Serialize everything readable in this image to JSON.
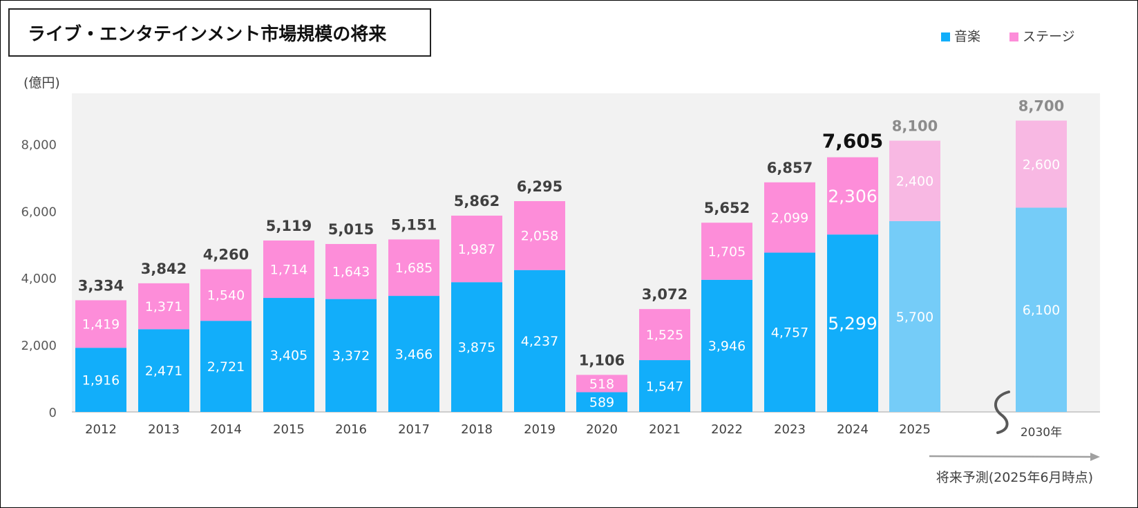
{
  "chart_data": {
    "type": "bar",
    "stacked": true,
    "title": "ライブ・エンタテインメント市場規模の将来",
    "ylabel": "(億円)",
    "ylim": [
      0,
      9000
    ],
    "yticks": [
      0,
      2000,
      4000,
      6000,
      8000
    ],
    "ytick_labels": [
      "0",
      "2,000",
      "4,000",
      "6,000",
      "8,000"
    ],
    "categories": [
      "2012",
      "2013",
      "2014",
      "2015",
      "2016",
      "2017",
      "2018",
      "2019",
      "2020",
      "2021",
      "2022",
      "2023",
      "2024",
      "2025",
      "2030年"
    ],
    "series": [
      {
        "name": "音楽",
        "color": "#12AEFA",
        "forecast_color": "#75CCF8",
        "values": [
          1916,
          2471,
          2721,
          3405,
          3372,
          3466,
          3875,
          4237,
          589,
          1547,
          3946,
          4757,
          5299,
          5700,
          6100
        ],
        "labels": [
          "1,916",
          "2,471",
          "2,721",
          "3,405",
          "3,372",
          "3,466",
          "3,875",
          "4,237",
          "589",
          "1,547",
          "3,946",
          "4,757",
          "5,299",
          "5,700",
          "6,100"
        ]
      },
      {
        "name": "ステージ",
        "color": "#FD8DD9",
        "forecast_color": "#F8B8E3",
        "values": [
          1419,
          1371,
          1540,
          1714,
          1643,
          1685,
          1987,
          2058,
          518,
          1525,
          1705,
          2099,
          2306,
          2400,
          2600
        ],
        "labels": [
          "1,419",
          "1,371",
          "1,540",
          "1,714",
          "1,643",
          "1,685",
          "1,987",
          "2,058",
          "518",
          "1,525",
          "1,705",
          "2,099",
          "2,306",
          "2,400",
          "2,600"
        ]
      }
    ],
    "totals": [
      3334,
      3842,
      4260,
      5119,
      5015,
      5151,
      5862,
      6295,
      1106,
      3072,
      5652,
      6857,
      7605,
      8100,
      8700
    ],
    "total_labels": [
      "3,334",
      "3,842",
      "4,260",
      "5,119",
      "5,015",
      "5,151",
      "5,862",
      "6,295",
      "1,106",
      "3,072",
      "5,652",
      "6,857",
      "7,605",
      "8,100",
      "8,700"
    ],
    "forecast_from_index": 13,
    "highlight_index": 12,
    "forecast_note": "将来予測(2025年6月時点)",
    "legend_position": "top-right",
    "grid": false,
    "colors": {
      "plot_bg": "#F2F2F2",
      "total_text": "#404040",
      "forecast_total_text": "#8C8C8C",
      "highlight_total_text": "#111111",
      "arrow": "#A0A0A0",
      "break_mark": "#595959"
    }
  }
}
